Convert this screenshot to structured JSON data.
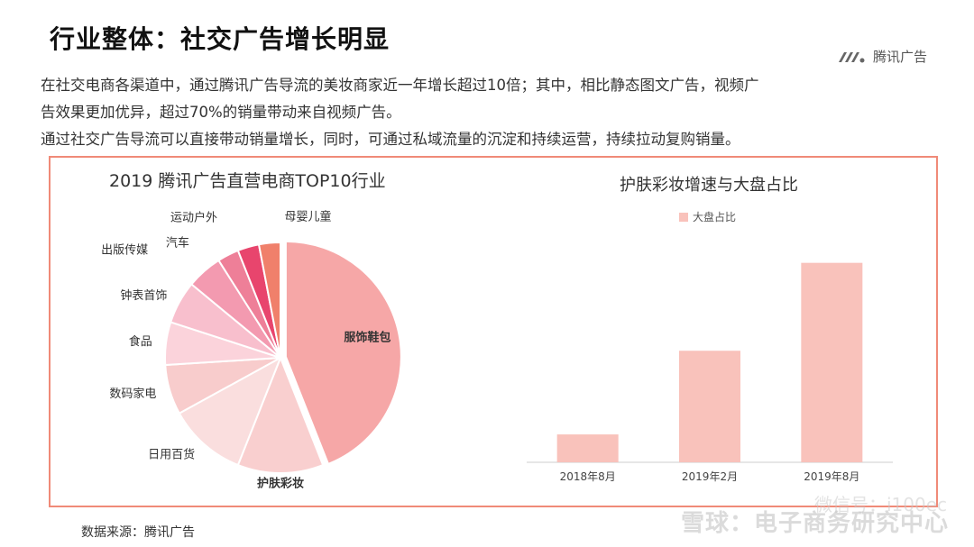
{
  "header": {
    "title": "行业整体：社交广告增长明显",
    "brand": "腾讯广告"
  },
  "description": {
    "line1": "在社交电商各渠道中，通过腾讯广告导流的美妆商家近一年增长超过10倍；其中，相比静态图文广告，视频广",
    "line2": "告效果更加优异，超过70%的销量带动来自视频广告。",
    "line3": "通过社交广告导流可以直接带动销量增长，同时，可通过私域流量的沉淀和持续运营，持续拉动复购销量。"
  },
  "footer": {
    "source": "数据来源：腾讯广告",
    "watermark_top": "微信号：i100ec",
    "watermark_bottom": "雪球：电子商务研究中心"
  },
  "chart_data": [
    {
      "type": "pie",
      "title": "2019 腾讯广告直营电商TOP10行业",
      "categories": [
        "服饰鞋包",
        "护肤彩妆",
        "日用百货",
        "数码家电",
        "食品",
        "钟表首饰",
        "出版传媒",
        "汽车",
        "运动户外",
        "母婴儿童"
      ],
      "values": [
        44,
        12,
        11,
        7,
        6,
        6,
        5,
        3,
        3,
        3
      ],
      "colors": [
        "#f6a7a7",
        "#f9cfcf",
        "#fadede",
        "#f8cccc",
        "#fbd3db",
        "#f8bfcd",
        "#f39ab0",
        "#ee7f98",
        "#e8456d",
        "#f0806b"
      ],
      "exploded": "服饰鞋包"
    },
    {
      "type": "bar",
      "title": "护肤彩妆增速与大盘占比",
      "categories": [
        "2018年8月",
        "2019年2月",
        "2019年8月"
      ],
      "series": [
        {
          "name": "大盘占比",
          "values": [
            1.3,
            5.2,
            9.3
          ]
        }
      ],
      "color": "#f9c2bb",
      "ylim": [
        0,
        10
      ]
    }
  ]
}
